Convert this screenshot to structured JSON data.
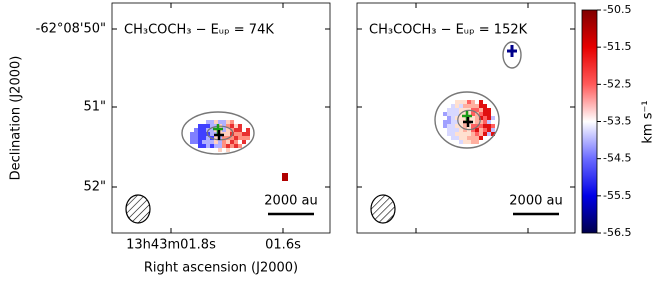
{
  "figure": {
    "panels": [
      {
        "title": "CH₃COCH₃ − Eᵤₚ = 74K",
        "scalebar": "2000 au"
      },
      {
        "title": "CH₃COCH₃ − Eᵤₚ = 152K",
        "scalebar": "2000 au"
      }
    ],
    "ylabel": "Declination (J2000)",
    "xlabel": "Right ascension (J2000)",
    "yticklabels": [
      "-62°08'50\"",
      "51\"",
      "52\""
    ],
    "xticklabels": [
      "13h43m01.8s",
      "01.6s"
    ],
    "colorbar": {
      "label": "km s⁻¹",
      "lim": [
        -56.5,
        -50.5
      ],
      "ticks": [
        -56.5,
        -55.5,
        -54.5,
        -53.5,
        -52.5,
        -51.5,
        -50.5
      ],
      "colormap": [
        "#00004c",
        "#0000e6",
        "#6b6bff",
        "#ffffff",
        "#ff5a5a",
        "#e60000",
        "#800000"
      ]
    }
  }
}
